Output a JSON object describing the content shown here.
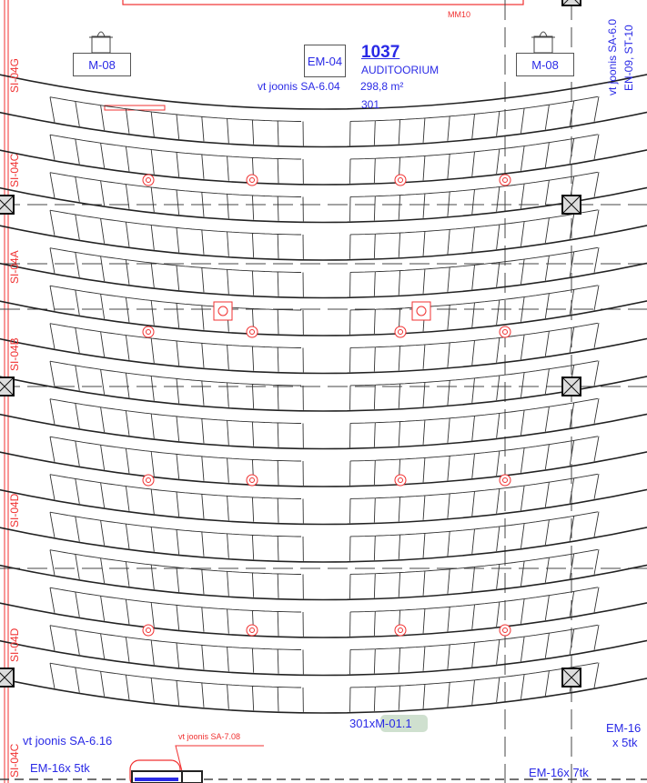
{
  "room": {
    "number": "1037",
    "name": "AUDITOORIUM",
    "area": "298,8 m²",
    "seats": "301"
  },
  "equipment_tags": {
    "em04": "EM-04",
    "m08_left": "M-08",
    "m08_right": "M-08",
    "mm10": "MM10",
    "seat_spec": "301xM-01.1",
    "em16_left": "EM-16x 5tk",
    "em16_bottom": "EM-16x 7tk",
    "em16_right_line1": "EM-16",
    "em16_right_line2": "x 5tk"
  },
  "references": {
    "sa604": "vt joonis SA-6.04",
    "sa616": "vt joonis SA-6.16",
    "sa708": "vt joonis SA-7.08",
    "right_ref_1": "vt joonis SA-6.0",
    "right_ref_2": "EN-09, ST-10"
  },
  "section_labels": [
    "SI-04G",
    "SI-04C",
    "SI-04A",
    "SI-04B",
    "SI-04D",
    "SI-04D",
    "SI-04C"
  ],
  "colors": {
    "annotation_blue": "#2a2ae6",
    "annotation_red": "#f03030",
    "linework": "#222222",
    "highlight_green": "#cfe0cf"
  }
}
